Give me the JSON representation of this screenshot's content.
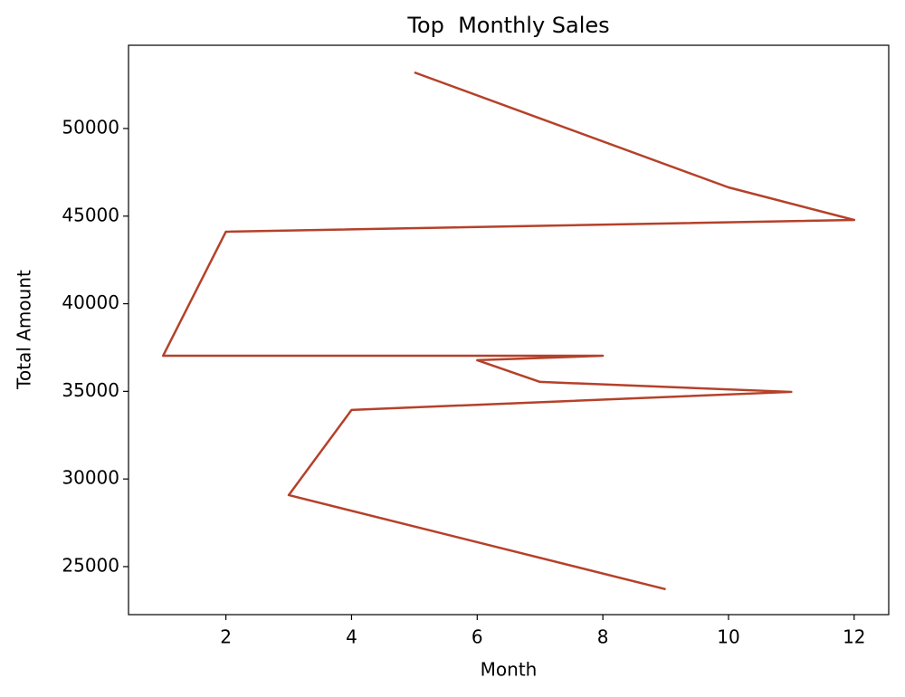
{
  "chart_data": {
    "type": "line",
    "title": "Top  Monthly Sales",
    "x_label": "Month",
    "y_label": "Total Amount",
    "x": [
      5,
      10,
      12,
      2,
      1,
      8,
      6,
      7,
      11,
      4,
      3,
      9
    ],
    "series": [
      {
        "color": "#b5412a",
        "values": [
          53200,
          46640,
          44780,
          44110,
          37030,
          37030,
          36780,
          35540,
          34970,
          33940,
          29080,
          23710
        ]
      }
    ],
    "xlim": [
      0.45,
      12.55
    ],
    "xticks": [
      2,
      4,
      6,
      8,
      10,
      12
    ],
    "ylim": [
      22260,
      54750
    ],
    "yticks": [
      25000,
      30000,
      35000,
      40000,
      45000,
      50000
    ]
  }
}
